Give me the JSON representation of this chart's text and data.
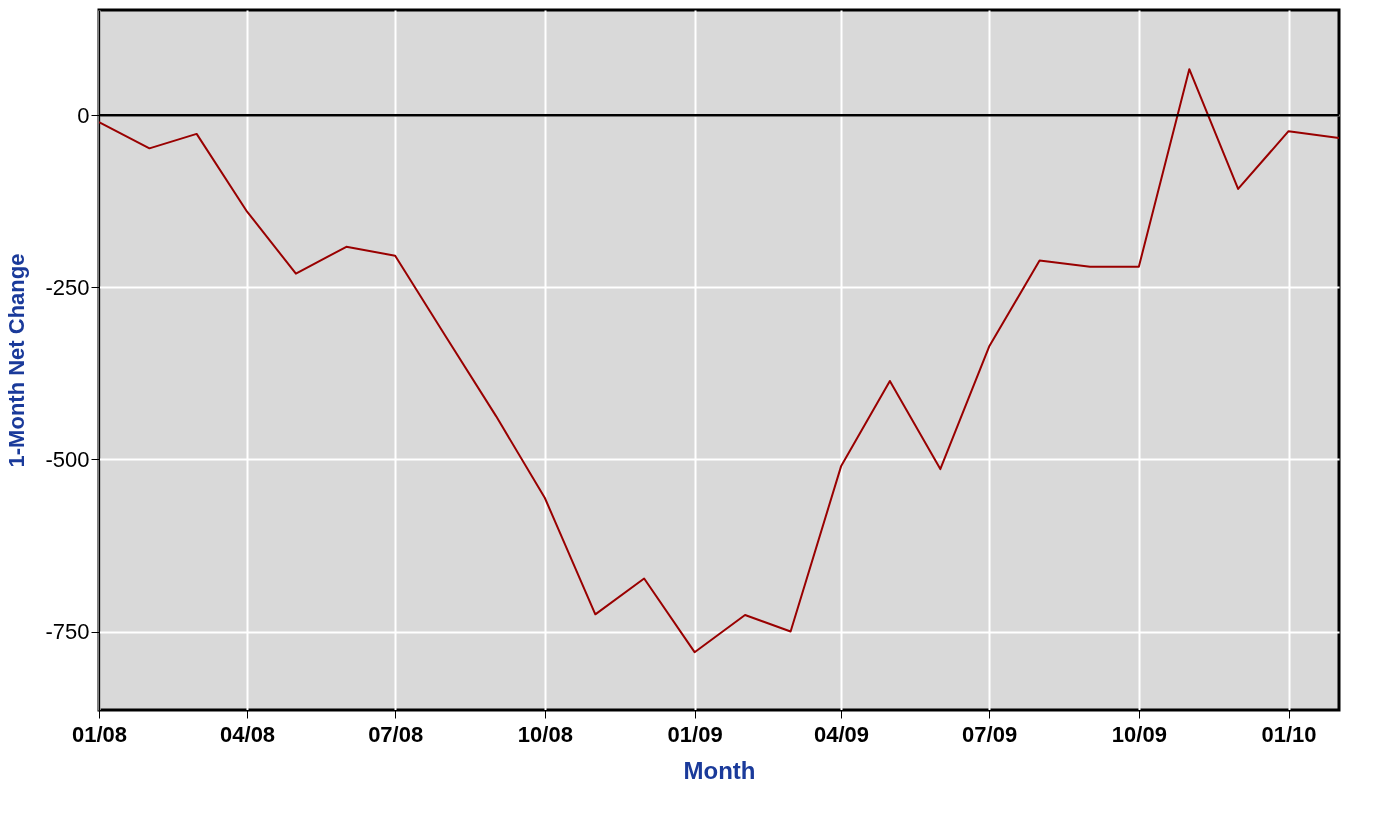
{
  "chart_data": {
    "type": "line",
    "xlabel": "Month",
    "ylabel": "1-Month Net Change",
    "x": [
      "2008-01",
      "2008-02",
      "2008-03",
      "2008-04",
      "2008-05",
      "2008-06",
      "2008-07",
      "2008-08",
      "2008-09",
      "2008-10",
      "2008-11",
      "2008-12",
      "2009-01",
      "2009-02",
      "2009-03",
      "2009-04",
      "2009-05",
      "2009-06",
      "2009-07",
      "2009-08",
      "2009-09",
      "2009-10",
      "2009-11",
      "2009-12",
      "2010-01",
      "2010-02"
    ],
    "series": [
      {
        "color": "#990000",
        "values": [
          -10,
          -48,
          -27,
          -140,
          -230,
          -191,
          -204,
          -321,
          -437,
          -556,
          -725,
          -673,
          -780,
          -726,
          -750,
          -510,
          -386,
          -514,
          -336,
          -211,
          -220,
          -220,
          67,
          -107,
          -23,
          -33
        ]
      }
    ],
    "xlim": [
      "2008-01",
      "2010-02"
    ],
    "xticks": [
      {
        "value": "2008-01",
        "label": "01/08"
      },
      {
        "value": "2008-04",
        "label": "04/08"
      },
      {
        "value": "2008-07",
        "label": "07/08"
      },
      {
        "value": "2008-10",
        "label": "10/08"
      },
      {
        "value": "2009-01",
        "label": "01/09"
      },
      {
        "value": "2009-04",
        "label": "04/09"
      },
      {
        "value": "2009-07",
        "label": "07/09"
      },
      {
        "value": "2009-10",
        "label": "10/09"
      },
      {
        "value": "2010-01",
        "label": "01/10"
      }
    ],
    "ylim": [
      -864,
      153
    ],
    "yticks": [
      -750,
      -500,
      -250,
      0
    ],
    "ref_lines": [
      {
        "axis": "y",
        "value": 0,
        "color": "#000000"
      }
    ],
    "grid": true,
    "marker": "none",
    "line_style": "solid"
  }
}
